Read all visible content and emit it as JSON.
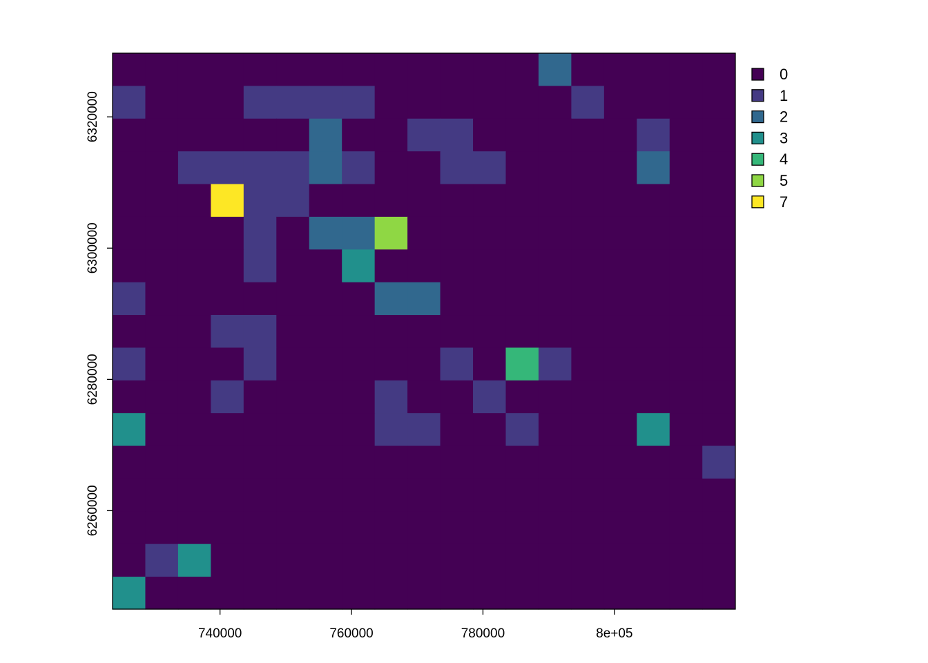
{
  "chart_data": {
    "type": "heatmap",
    "title": "",
    "xlabel": "",
    "ylabel": "",
    "x_ticks": [
      {
        "value": 740000,
        "label": "740000"
      },
      {
        "value": 760000,
        "label": "760000"
      },
      {
        "value": 780000,
        "label": "780000"
      },
      {
        "value": 800000,
        "label": "8e+05"
      }
    ],
    "y_ticks": [
      {
        "value": 6320000,
        "label": "6320000"
      },
      {
        "value": 6300000,
        "label": "6300000"
      },
      {
        "value": 6280000,
        "label": "6280000"
      },
      {
        "value": 6260000,
        "label": "6260000"
      }
    ],
    "xlim": [
      723650,
      818400
    ],
    "ylim": [
      6245000,
      6329700
    ],
    "cell_size": 4985,
    "grid_origin": {
      "x_min": 723650,
      "y_max": 6329700
    },
    "legend": {
      "placement": "top-right",
      "entries": [
        {
          "value": 0,
          "label": "0",
          "color": "#440154"
        },
        {
          "value": 1,
          "label": "1",
          "color": "#443A83"
        },
        {
          "value": 2,
          "label": "2",
          "color": "#31688E"
        },
        {
          "value": 3,
          "label": "3",
          "color": "#21908C"
        },
        {
          "value": 4,
          "label": "4",
          "color": "#35B779"
        },
        {
          "value": 5,
          "label": "5",
          "color": "#8FD744"
        },
        {
          "value": 7,
          "label": "7",
          "color": "#FDE725"
        }
      ]
    },
    "grid": [
      [
        0,
        0,
        0,
        0,
        0,
        0,
        0,
        0,
        0,
        0,
        0,
        0,
        0,
        2,
        0,
        0,
        0,
        0,
        0
      ],
      [
        1,
        0,
        0,
        0,
        1,
        1,
        1,
        1,
        0,
        0,
        0,
        0,
        0,
        0,
        1,
        0,
        0,
        0,
        0
      ],
      [
        0,
        0,
        0,
        0,
        0,
        0,
        2,
        0,
        0,
        1,
        1,
        0,
        0,
        0,
        0,
        0,
        1,
        0,
        0
      ],
      [
        0,
        0,
        1,
        1,
        1,
        1,
        2,
        1,
        0,
        0,
        1,
        1,
        0,
        0,
        0,
        0,
        2,
        0,
        0
      ],
      [
        0,
        0,
        0,
        7,
        1,
        1,
        0,
        0,
        0,
        0,
        0,
        0,
        0,
        0,
        0,
        0,
        0,
        0,
        0
      ],
      [
        0,
        0,
        0,
        0,
        1,
        0,
        2,
        2,
        5,
        0,
        0,
        0,
        0,
        0,
        0,
        0,
        0,
        0,
        0
      ],
      [
        0,
        0,
        0,
        0,
        1,
        0,
        0,
        3,
        0,
        0,
        0,
        0,
        0,
        0,
        0,
        0,
        0,
        0,
        0
      ],
      [
        1,
        0,
        0,
        0,
        0,
        0,
        0,
        0,
        2,
        2,
        0,
        0,
        0,
        0,
        0,
        0,
        0,
        0,
        0
      ],
      [
        0,
        0,
        0,
        1,
        1,
        0,
        0,
        0,
        0,
        0,
        0,
        0,
        0,
        0,
        0,
        0,
        0,
        0,
        0
      ],
      [
        1,
        0,
        0,
        0,
        1,
        0,
        0,
        0,
        0,
        0,
        1,
        0,
        4,
        1,
        0,
        0,
        0,
        0,
        0
      ],
      [
        0,
        0,
        0,
        1,
        0,
        0,
        0,
        0,
        1,
        0,
        0,
        1,
        0,
        0,
        0,
        0,
        0,
        0,
        0
      ],
      [
        3,
        0,
        0,
        0,
        0,
        0,
        0,
        0,
        1,
        1,
        0,
        0,
        1,
        0,
        0,
        0,
        3,
        0,
        0
      ],
      [
        0,
        0,
        0,
        0,
        0,
        0,
        0,
        0,
        0,
        0,
        0,
        0,
        0,
        0,
        0,
        0,
        0,
        0,
        1
      ],
      [
        0,
        0,
        0,
        0,
        0,
        0,
        0,
        0,
        0,
        0,
        0,
        0,
        0,
        0,
        0,
        0,
        0,
        0,
        0
      ],
      [
        0,
        0,
        0,
        0,
        0,
        0,
        0,
        0,
        0,
        0,
        0,
        0,
        0,
        0,
        0,
        0,
        0,
        0,
        0
      ],
      [
        0,
        1,
        3,
        0,
        0,
        0,
        0,
        0,
        0,
        0,
        0,
        0,
        0,
        0,
        0,
        0,
        0,
        0,
        0
      ],
      [
        3,
        0,
        0,
        0,
        0,
        0,
        0,
        0,
        0,
        0,
        0,
        0,
        0,
        0,
        0,
        0,
        0,
        0,
        0
      ]
    ]
  }
}
